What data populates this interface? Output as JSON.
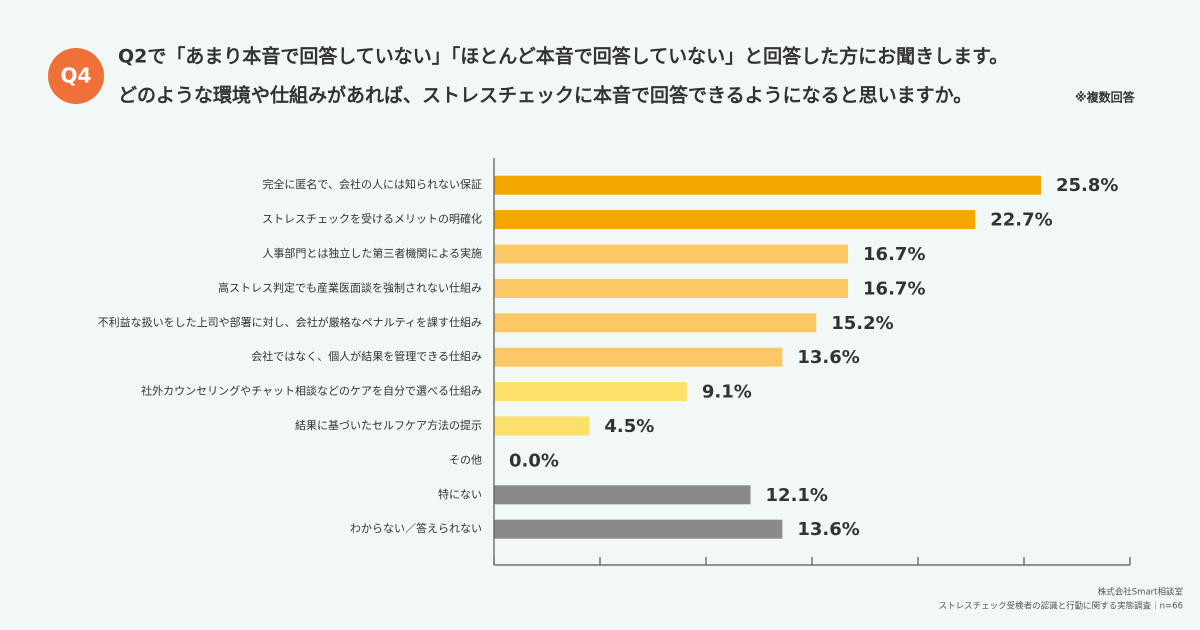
{
  "chart_data": {
    "type": "bar",
    "orientation": "horizontal",
    "question_label": "Q4",
    "title": "Q2で「あまり本音で回答していない」「ほとんど本音で回答していない」と回答した方にお聞きします。",
    "subtitle": "どのような環境や仕組みがあれば、ストレスチェックに本音で回答できるようになると思いますか。",
    "note": "※複数回答",
    "categories": [
      "完全に匿名で、会社の人には知られない保証",
      "ストレスチェックを受けるメリットの明確化",
      "人事部門とは独立した第三者機関による実施",
      "高ストレス判定でも産業医面談を強制されない仕組み",
      "不利益な扱いをした上司や部署に対し、会社が厳格なペナルティを課す仕組み",
      "会社ではなく、個人が結果を管理できる仕組み",
      "社外カウンセリングやチャット相談などのケアを自分で選べる仕組み",
      "結果に基づいたセルフケア方法の提示",
      "その他",
      "特にない",
      "わからない／答えられない"
    ],
    "values": [
      25.8,
      22.7,
      16.7,
      16.7,
      15.2,
      13.6,
      9.1,
      4.5,
      0.0,
      12.1,
      13.6
    ],
    "value_labels": [
      "25.8%",
      "22.7%",
      "16.7%",
      "16.7%",
      "15.2%",
      "13.6%",
      "9.1%",
      "4.5%",
      "0.0%",
      "12.1%",
      "13.6%"
    ],
    "colors": [
      "#f5a700",
      "#f5a700",
      "#fcc864",
      "#fcc864",
      "#fcc864",
      "#fcc864",
      "#fde06a",
      "#fde06a",
      "#fde06a",
      "#8a8a8a",
      "#8a8a8a"
    ],
    "xlim": [
      0,
      30
    ],
    "xticks": [
      0,
      5,
      10,
      15,
      20,
      25,
      30
    ],
    "source": [
      "株式会社Smart相談室",
      "ストレスチェック受検者の認識と行動に関する実態調査｜n=66"
    ]
  }
}
